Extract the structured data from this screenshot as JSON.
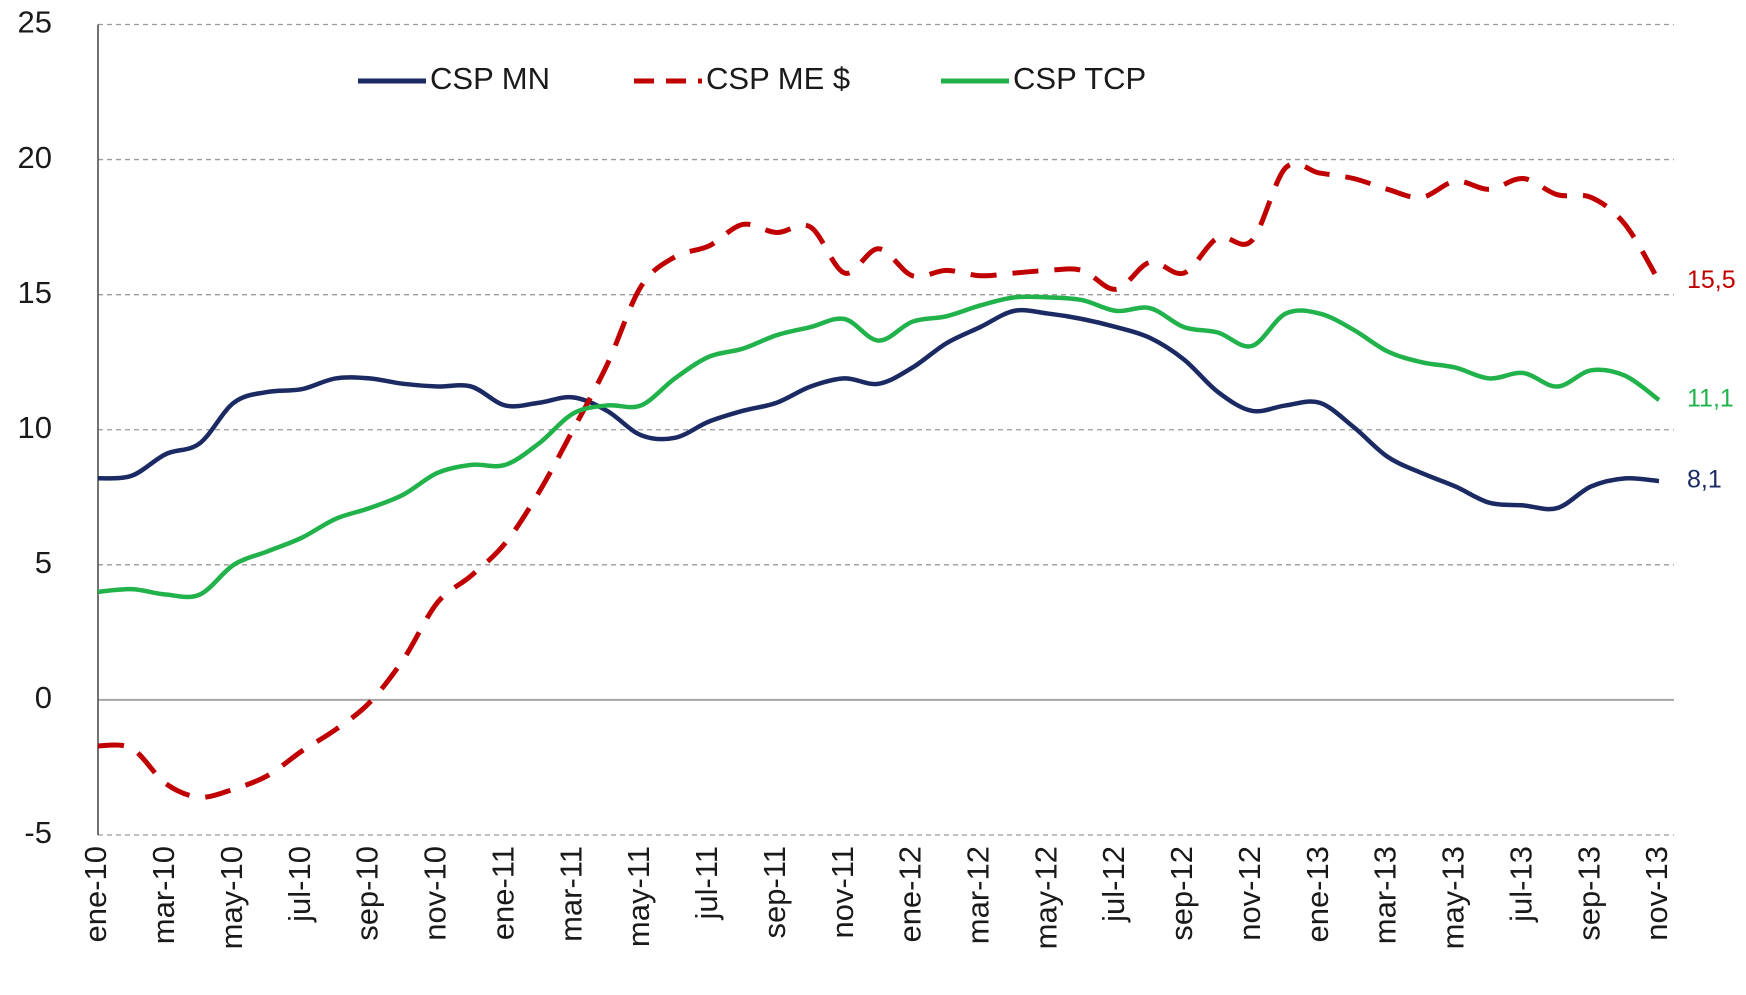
{
  "chart_data": {
    "type": "line",
    "categories": [
      "ene-10",
      null,
      "mar-10",
      null,
      "may-10",
      null,
      "jul-10",
      null,
      "sep-10",
      null,
      "nov-10",
      null,
      "ene-11",
      null,
      "mar-11",
      null,
      "may-11",
      null,
      "jul-11",
      null,
      "sep-11",
      null,
      "nov-11",
      null,
      "ene-12",
      null,
      "mar-12",
      null,
      "may-12",
      null,
      "jul-12",
      null,
      "sep-12",
      null,
      "nov-12",
      null,
      "ene-13",
      null,
      "mar-13",
      null,
      "may-13",
      null,
      "jul-13",
      null,
      "sep-13",
      null,
      "nov-13"
    ],
    "series": [
      {
        "name": "CSP MN",
        "color": "#1b2a63",
        "dashed": false,
        "values": [
          8.2,
          8.3,
          9.1,
          9.5,
          11.0,
          11.4,
          11.5,
          11.9,
          11.9,
          11.7,
          11.6,
          11.6,
          10.9,
          11.0,
          11.2,
          10.7,
          9.8,
          9.7,
          10.3,
          10.7,
          11.0,
          11.6,
          11.9,
          11.7,
          12.3,
          13.2,
          13.8,
          14.4,
          14.3,
          14.1,
          13.8,
          13.4,
          12.6,
          11.4,
          10.7,
          10.9,
          11.0,
          10.1,
          9.0,
          8.4,
          7.9,
          7.3,
          7.2,
          7.1,
          7.9,
          8.2,
          8.1
        ],
        "value_labels": [
          null,
          null,
          null,
          null,
          null,
          null,
          null,
          null,
          null,
          null,
          null,
          null,
          null,
          null,
          null,
          null,
          null,
          null,
          null,
          null,
          null,
          null,
          null,
          null,
          null,
          null,
          null,
          null,
          null,
          null,
          null,
          null,
          null,
          null,
          null,
          null,
          null,
          null,
          null,
          null,
          null,
          null,
          null,
          null,
          null,
          null,
          "8,1"
        ]
      },
      {
        "name": "CSP ME $",
        "color": "#c00000",
        "dashed": true,
        "values": [
          -1.7,
          -1.8,
          -3.1,
          -3.6,
          -3.3,
          -2.8,
          -1.9,
          -1.1,
          -0.1,
          1.5,
          3.6,
          4.6,
          5.8,
          7.7,
          10.0,
          12.4,
          15.3,
          16.4,
          16.8,
          17.6,
          17.3,
          17.5,
          15.8,
          16.7,
          15.7,
          15.9,
          15.7,
          15.8,
          15.9,
          15.9,
          15.2,
          16.2,
          15.8,
          17.1,
          17.0,
          19.7,
          19.5,
          19.3,
          18.9,
          18.6,
          19.2,
          18.9,
          19.3,
          18.7,
          18.6,
          17.6,
          15.5
        ],
        "value_labels": [
          null,
          null,
          null,
          null,
          null,
          null,
          null,
          null,
          null,
          null,
          null,
          null,
          null,
          null,
          null,
          null,
          null,
          null,
          null,
          null,
          null,
          null,
          null,
          null,
          null,
          null,
          null,
          null,
          null,
          null,
          null,
          null,
          null,
          null,
          null,
          null,
          null,
          null,
          null,
          null,
          null,
          null,
          null,
          null,
          null,
          null,
          "15,5"
        ]
      },
      {
        "name": "CSP TCP",
        "color": "#21b24b",
        "dashed": false,
        "values": [
          4.0,
          4.1,
          3.9,
          3.9,
          5.0,
          5.5,
          6.0,
          6.7,
          7.1,
          7.6,
          8.4,
          8.7,
          8.7,
          9.5,
          10.6,
          10.9,
          10.9,
          11.9,
          12.7,
          13.0,
          13.5,
          13.8,
          14.1,
          13.3,
          14.0,
          14.2,
          14.6,
          14.9,
          14.9,
          14.8,
          14.4,
          14.5,
          13.8,
          13.6,
          13.1,
          14.3,
          14.3,
          13.7,
          12.9,
          12.5,
          12.3,
          11.9,
          12.1,
          11.6,
          12.2,
          12.0,
          11.1
        ],
        "value_labels": [
          null,
          null,
          null,
          null,
          null,
          null,
          null,
          null,
          null,
          null,
          null,
          null,
          null,
          null,
          null,
          null,
          null,
          null,
          null,
          null,
          null,
          null,
          null,
          null,
          null,
          null,
          null,
          null,
          null,
          null,
          null,
          null,
          null,
          null,
          null,
          null,
          null,
          null,
          null,
          null,
          null,
          null,
          null,
          null,
          null,
          null,
          "11,1"
        ]
      }
    ],
    "ylim": [
      -5,
      25
    ],
    "yticks": [
      -5,
      0,
      5,
      10,
      15,
      20,
      25
    ],
    "grid": true,
    "legend": "top"
  }
}
